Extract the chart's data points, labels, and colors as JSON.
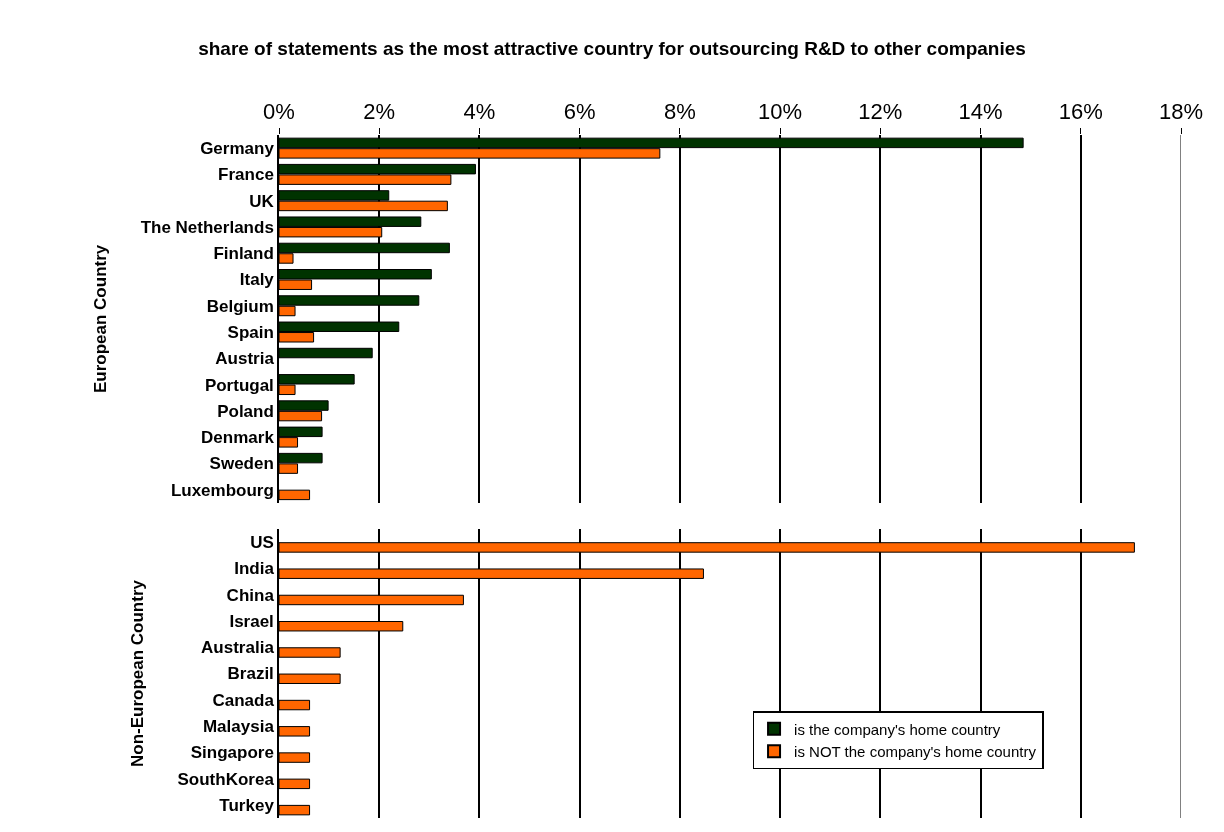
{
  "chart_data": [
    {
      "type": "bar",
      "orientation": "horizontal",
      "title": "share of statements as the most attractive country for outsourcing R&D to other companies",
      "ylabel": "European Country",
      "categories": [
        "Germany",
        "France",
        "UK",
        "The Netherlands",
        "Finland",
        "Italy",
        "Belgium",
        "Spain",
        "Austria",
        "Portugal",
        "Poland",
        "Denmark",
        "Sweden",
        "Luxembourg"
      ],
      "series": [
        {
          "color": "#003300",
          "values": [
            14.85,
            3.92,
            2.19,
            2.83,
            3.4,
            3.04,
            2.79,
            2.39,
            1.86,
            1.5,
            0.98,
            0.86,
            0.86,
            null
          ]
        },
        {
          "color": "#ff6600",
          "values": [
            7.6,
            3.43,
            3.36,
            2.05,
            0.28,
            0.65,
            0.32,
            0.69,
            null,
            0.32,
            0.85,
            0.37,
            0.37,
            0.61
          ]
        }
      ],
      "xlim": [
        0,
        18
      ],
      "xticks": [
        {
          "value": 0,
          "label": "0%"
        },
        {
          "value": 2,
          "label": "2%"
        },
        {
          "value": 4,
          "label": "4%"
        },
        {
          "value": 6,
          "label": "6%"
        },
        {
          "value": 8,
          "label": "8%"
        },
        {
          "value": 10,
          "label": "10%"
        },
        {
          "value": 12,
          "label": "12%"
        },
        {
          "value": 14,
          "label": "14%"
        },
        {
          "value": 16,
          "label": "16%"
        },
        {
          "value": 18,
          "label": "18%"
        }
      ],
      "grid": "x"
    },
    {
      "type": "bar",
      "orientation": "horizontal",
      "ylabel": "Non-European Country",
      "categories": [
        "US",
        "India",
        "China",
        "Israel",
        "Australia",
        "Brazil",
        "Canada",
        "Malaysia",
        "Singapore",
        "SouthKorea",
        "Turkey"
      ],
      "series": [
        {
          "name": "is the company's home country",
          "color": "#003300",
          "values": [
            null,
            null,
            null,
            null,
            null,
            null,
            null,
            null,
            null,
            null,
            null
          ]
        },
        {
          "name": "is NOT the company's home country",
          "color": "#ff6600",
          "values": [
            17.07,
            8.47,
            3.68,
            2.47,
            1.22,
            1.22,
            0.61,
            0.61,
            0.61,
            0.61,
            0.61
          ]
        }
      ],
      "xlim": [
        0,
        18
      ],
      "xticks": [
        {
          "value": 0,
          "label": null
        },
        {
          "value": 2,
          "label": null
        },
        {
          "value": 4,
          "label": null
        },
        {
          "value": 6,
          "label": null
        },
        {
          "value": 8,
          "label": null
        },
        {
          "value": 10,
          "label": null
        },
        {
          "value": 12,
          "label": null
        },
        {
          "value": 14,
          "label": null
        },
        {
          "value": 16,
          "label": null
        },
        {
          "value": 18,
          "label": null
        }
      ],
      "tick_labels": "y",
      "grid": "x",
      "legend": "bottom right"
    }
  ]
}
